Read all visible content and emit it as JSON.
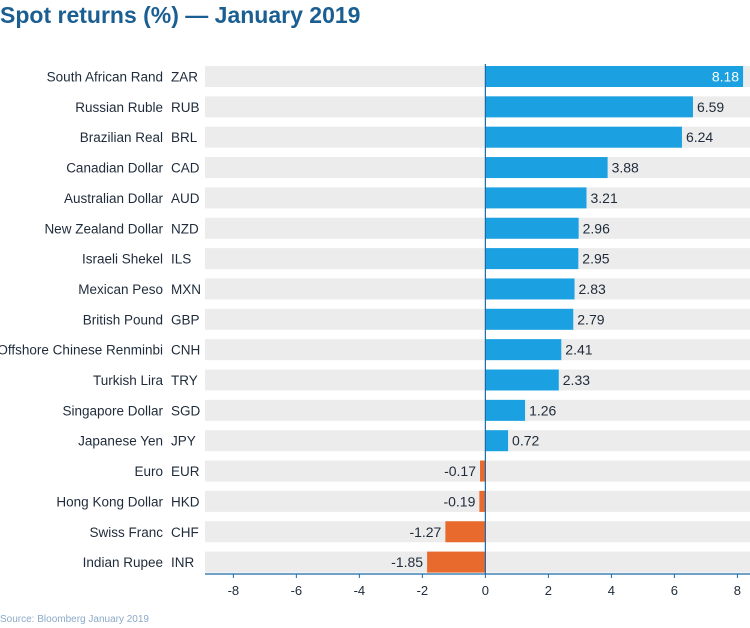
{
  "title": "Spot returns (%) — January 2019",
  "source": "Source: Bloomberg January 2019",
  "colors": {
    "title": "#1b5f92",
    "positive": "#1ba1e2",
    "negative": "#e86a2c",
    "row_band": "#ececec",
    "axis": "#1b6aa8",
    "source": "#8aa9c8"
  },
  "chart_data": {
    "type": "bar",
    "orientation": "horizontal",
    "xlim": [
      -8.9,
      8.4
    ],
    "xticks": [
      -8,
      -6,
      -4,
      -2,
      0,
      2,
      4,
      6,
      8
    ],
    "grid": false,
    "rows": [
      {
        "name": "South African Rand",
        "code": "ZAR",
        "value": 8.18
      },
      {
        "name": "Russian Ruble",
        "code": "RUB",
        "value": 6.59
      },
      {
        "name": "Brazilian Real",
        "code": "BRL",
        "value": 6.24
      },
      {
        "name": "Canadian Dollar",
        "code": "CAD",
        "value": 3.88
      },
      {
        "name": "Australian Dollar",
        "code": "AUD",
        "value": 3.21
      },
      {
        "name": "New Zealand Dollar",
        "code": "NZD",
        "value": 2.96
      },
      {
        "name": "Israeli Shekel",
        "code": "ILS",
        "value": 2.95
      },
      {
        "name": "Mexican Peso",
        "code": "MXN",
        "value": 2.83
      },
      {
        "name": "British Pound",
        "code": "GBP",
        "value": 2.79
      },
      {
        "name": "Offshore Chinese Renminbi",
        "code": "CNH",
        "value": 2.41
      },
      {
        "name": "Turkish Lira",
        "code": "TRY",
        "value": 2.33
      },
      {
        "name": "Singapore Dollar",
        "code": "SGD",
        "value": 1.26
      },
      {
        "name": "Japanese Yen",
        "code": "JPY",
        "value": 0.72
      },
      {
        "name": "Euro",
        "code": "EUR",
        "value": -0.17
      },
      {
        "name": "Hong Kong Dollar",
        "code": "HKD",
        "value": -0.19
      },
      {
        "name": "Swiss Franc",
        "code": "CHF",
        "value": -1.27
      },
      {
        "name": "Indian Rupee",
        "code": "INR",
        "value": -1.85
      }
    ]
  }
}
